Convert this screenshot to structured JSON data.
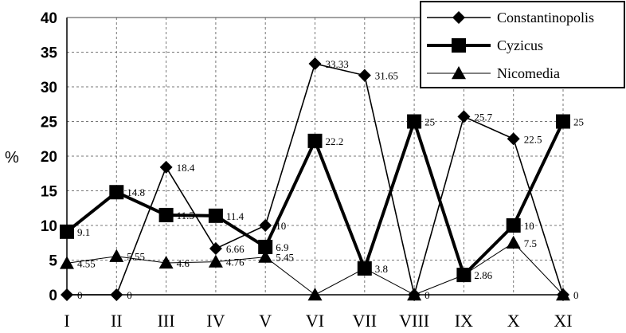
{
  "chart_data": {
    "type": "line",
    "title": "",
    "xlabel": "",
    "ylabel": "%",
    "ylim": [
      0,
      40
    ],
    "yticks": [
      0,
      5,
      10,
      15,
      20,
      25,
      30,
      35,
      40
    ],
    "grid": true,
    "legend_position": "top-right",
    "categories": [
      "I",
      "II",
      "III",
      "IV",
      "V",
      "VI",
      "VII",
      "VIII",
      "IX",
      "X",
      "XI"
    ],
    "series": [
      {
        "name": "Constantinopolis",
        "marker": "diamond",
        "color": "#000000",
        "values": [
          0,
          0,
          18.4,
          6.66,
          10,
          33.33,
          31.65,
          0,
          25.7,
          22.5,
          0
        ],
        "labels": [
          "0",
          "0",
          "18.4",
          "6.66",
          "10",
          "33.33",
          "31.65",
          "0",
          "25.7",
          "22.5",
          "0"
        ]
      },
      {
        "name": "Cyzicus",
        "marker": "square",
        "color": "#000000",
        "values": [
          9.1,
          14.8,
          11.5,
          11.4,
          6.9,
          22.2,
          3.8,
          25,
          2.86,
          10,
          25
        ],
        "labels": [
          "9.1",
          "14.8",
          "11.5",
          "11.4",
          "6.9",
          "22.2",
          "3.8",
          "25",
          "2.86",
          "10",
          "25"
        ]
      },
      {
        "name": "Nicomedia",
        "marker": "triangle",
        "color": "#000000",
        "values": [
          4.55,
          5.55,
          4.6,
          4.76,
          5.45,
          0,
          3.8,
          0,
          2.86,
          7.5,
          0
        ],
        "labels": [
          "4.55",
          "5.55",
          "4.6",
          "4.76",
          "5.45",
          "",
          "",
          "",
          "",
          "7.5",
          ""
        ]
      }
    ]
  }
}
